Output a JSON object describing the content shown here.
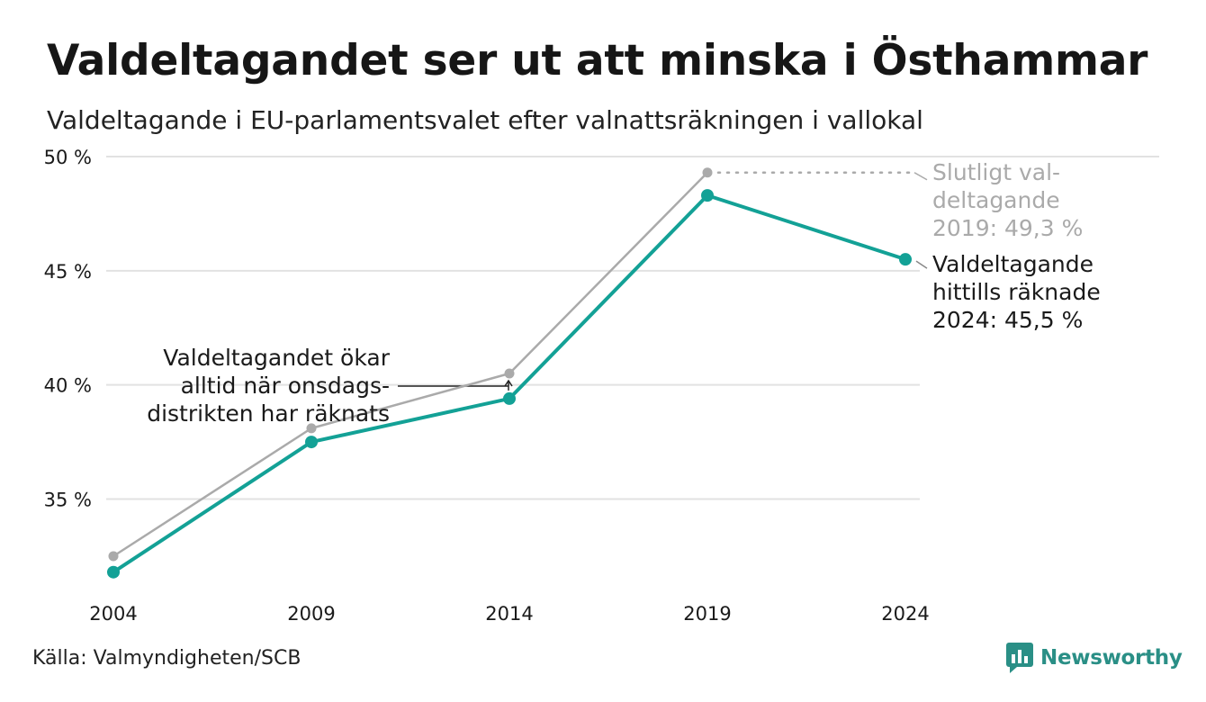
{
  "header": {
    "title": "Valdeltagandet ser ut att minska i Östhammar",
    "subtitle": "Valdeltagande i EU-parlamentsvalet efter valnattsräkningen i vallokal"
  },
  "footer": {
    "source": "Källa: Valmyndigheten/SCB",
    "brand": "Newsworthy"
  },
  "colors": {
    "counted": "#13a196",
    "final": "#aaaaaa",
    "grid": "#e2e2e2",
    "text": "#1a1a1a",
    "brand": "#2a8f86"
  },
  "chart_data": {
    "type": "line",
    "x": [
      "2004",
      "2009",
      "2014",
      "2019",
      "2024"
    ],
    "ylim": [
      31,
      50
    ],
    "yticks": [
      35,
      40,
      45,
      50
    ],
    "ytick_labels": [
      "35 %",
      "40 %",
      "45 %",
      "50 %"
    ],
    "grid": true,
    "series": [
      {
        "key": "final",
        "values": [
          32.5,
          38.1,
          40.5,
          49.3,
          null
        ]
      },
      {
        "key": "counted",
        "values": [
          31.8,
          37.5,
          39.4,
          48.3,
          45.5
        ]
      }
    ],
    "annotations": {
      "final_label": [
        "Slutligt val-",
        "deltagande",
        "2019: 49,3 %"
      ],
      "counted_label": [
        "Valdeltagande",
        "hittills räknade",
        "2024: 45,5 %"
      ],
      "note": [
        "Valdeltagandet ökar",
        "alltid när onsdags-",
        "distrikten har räknats"
      ]
    }
  }
}
